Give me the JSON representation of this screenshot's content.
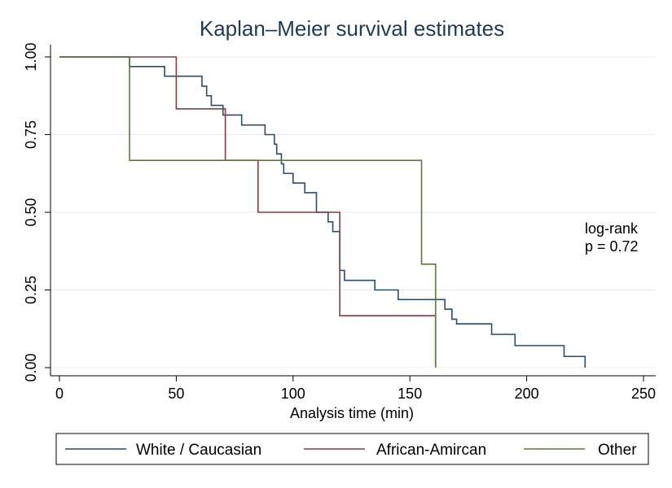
{
  "chart_data": {
    "type": "line",
    "title": "Kaplan–Meier survival estimates",
    "xlabel": "Analysis time (min)",
    "ylabel": "",
    "xlim": [
      0,
      250
    ],
    "ylim": [
      0,
      1
    ],
    "xticks": [
      0,
      50,
      100,
      150,
      200,
      250
    ],
    "yticks": [
      0,
      0.25,
      0.5,
      0.75,
      1.0
    ],
    "xtick_labels": [
      "0",
      "50",
      "100",
      "150",
      "200",
      "250"
    ],
    "ytick_labels": [
      "0.00",
      "0.25",
      "0.50",
      "0.75",
      "1.00"
    ],
    "grid": true,
    "legend_position": "bottom",
    "annotation": {
      "line1": "log-rank",
      "line2": "p = 0.72"
    },
    "series": [
      {
        "name": "White / Caucasian",
        "color": "#2a4d6e",
        "step": true,
        "points": [
          [
            0,
            1.0
          ],
          [
            30,
            0.969
          ],
          [
            45,
            0.938
          ],
          [
            61,
            0.906
          ],
          [
            63,
            0.875
          ],
          [
            65,
            0.844
          ],
          [
            70,
            0.813
          ],
          [
            78,
            0.781
          ],
          [
            88,
            0.75
          ],
          [
            92,
            0.719
          ],
          [
            93,
            0.688
          ],
          [
            95,
            0.656
          ],
          [
            96,
            0.625
          ],
          [
            100,
            0.594
          ],
          [
            105,
            0.563
          ],
          [
            110,
            0.5
          ],
          [
            115,
            0.469
          ],
          [
            117,
            0.438
          ],
          [
            120,
            0.313
          ],
          [
            122,
            0.281
          ],
          [
            135,
            0.25
          ],
          [
            145,
            0.219
          ],
          [
            165,
            0.188
          ],
          [
            168,
            0.156
          ],
          [
            170,
            0.141
          ],
          [
            185,
            0.107
          ],
          [
            195,
            0.071
          ],
          [
            216,
            0.036
          ],
          [
            225,
            0.0
          ]
        ]
      },
      {
        "name": "African-Amircan",
        "color": "#8b3a3f",
        "step": true,
        "points": [
          [
            0,
            1.0
          ],
          [
            50,
            0.833
          ],
          [
            71,
            0.667
          ],
          [
            85,
            0.5
          ],
          [
            120,
            0.167
          ],
          [
            161,
            0.0
          ]
        ]
      },
      {
        "name": "Other",
        "color": "#5a7a3a",
        "step": true,
        "points": [
          [
            0,
            1.0
          ],
          [
            30,
            0.667
          ],
          [
            155,
            0.333
          ],
          [
            161,
            0.0
          ]
        ]
      }
    ]
  }
}
